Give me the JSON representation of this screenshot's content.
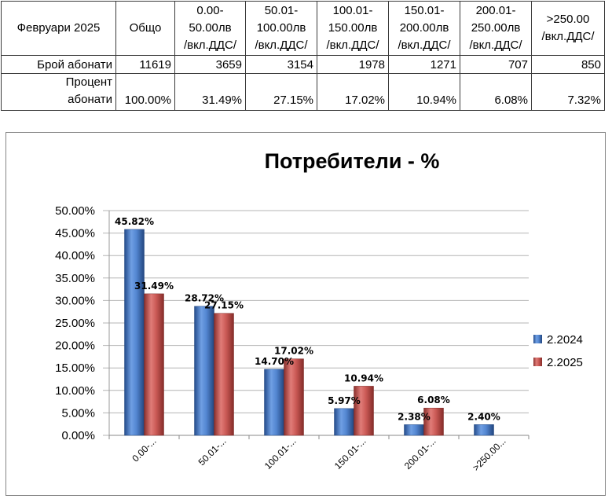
{
  "table": {
    "headers": [
      "Февруари 2025",
      "Общо",
      "0.00-\n50.00лв\n/вкл.ДДС/",
      "50.01-\n100.00лв\n/вкл.ДДС/",
      "100.01-\n150.00лв\n/вкл.ДДС/",
      "150.01-\n200.00лв\n/вкл.ДДС/",
      "200.01-\n250.00лв\n/вкл.ДДС/",
      ">250.00\n/вкл.ДДС/"
    ],
    "rows": [
      {
        "label": "Брой  абонати",
        "values": [
          "11619",
          "3659",
          "3154",
          "1978",
          "1271",
          "707",
          "850"
        ]
      },
      {
        "label": "Процент\nабонати",
        "values": [
          "100.00%",
          "31.49%",
          "27.15%",
          "17.02%",
          "10.94%",
          "6.08%",
          "7.32%"
        ]
      }
    ]
  },
  "chart_data": {
    "type": "bar",
    "title": "Потребители - %",
    "xlabel": "",
    "ylabel": "",
    "categories": [
      "0.00-...",
      "50.01-...",
      "100.01-...",
      "150.01-...",
      "200.01-...",
      ">250.00..."
    ],
    "series": [
      {
        "name": "2.2024",
        "values": [
          45.82,
          28.72,
          14.7,
          5.97,
          2.38,
          2.4
        ],
        "color": "#3d6db6"
      },
      {
        "name": "2.2025",
        "values": [
          31.49,
          27.15,
          17.02,
          10.94,
          6.08,
          null
        ],
        "color": "#c0504d"
      }
    ],
    "ylim": [
      0,
      50
    ],
    "ytick_step": 5,
    "value_format": "percent",
    "grid": true,
    "legend": "right"
  }
}
